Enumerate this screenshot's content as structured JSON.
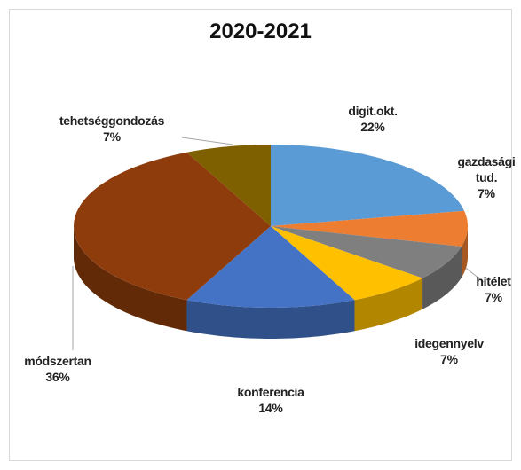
{
  "chart_data": {
    "type": "pie",
    "title": "2020-2021",
    "categories": [
      "digit.okt.",
      "gazdasági tud.",
      "hitélet",
      "idegennyelv",
      "konferencia",
      "módszertan",
      "tehetséggondozás"
    ],
    "values": [
      22,
      7,
      7,
      7,
      14,
      36,
      7
    ],
    "value_labels": [
      "22%",
      "7%",
      "7%",
      "7%",
      "14%",
      "36%",
      "7%"
    ],
    "colors": [
      "#5b9bd5",
      "#ed7d31",
      "#7f7f7f",
      "#ffc000",
      "#4472c4",
      "#8e3c0c",
      "#7f6000"
    ]
  }
}
